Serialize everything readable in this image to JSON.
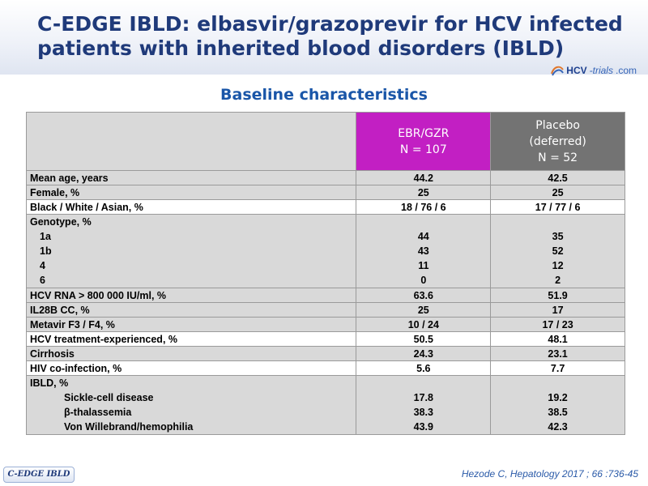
{
  "slide": {
    "title_line1": "C-EDGE IBLD: elbasvir/grazoprevir for HCV infected",
    "title_line2": "patients with inherited blood disorders (IBLD)",
    "subtitle": "Baseline characteristics",
    "logo": {
      "hcv": "HCV",
      "trials": "-trials",
      "dotcom": ".com"
    },
    "footer_badge": "C-EDGE IBLD",
    "citation": "Hezode C, Hepatology 2017 ; 66 :736-45"
  },
  "table": {
    "header": {
      "col_a": {
        "line1": "EBR/GZR",
        "line2": "N = 107"
      },
      "col_b": {
        "line1": "Placebo",
        "line2": "(deferred)",
        "line3": "N = 52"
      }
    },
    "rows": {
      "mean_age": {
        "label": "Mean age, years",
        "a": "44.2",
        "b": "42.5"
      },
      "female": {
        "label": "Female, %",
        "a": "25",
        "b": "25"
      },
      "race": {
        "label": "Black / White / Asian, %",
        "a": "18 / 76 / 6",
        "b": "17 / 77 / 6"
      },
      "genotype": {
        "label": "Genotype, %",
        "items": [
          {
            "label": "1a",
            "a": "44",
            "b": "35"
          },
          {
            "label": "1b",
            "a": "43",
            "b": "52"
          },
          {
            "label": "4",
            "a": "11",
            "b": "12"
          },
          {
            "label": "6",
            "a": "0",
            "b": "2"
          }
        ]
      },
      "hcv_rna": {
        "label": "HCV RNA > 800 000 IU/ml, %",
        "a": "63.6",
        "b": "51.9"
      },
      "il28b": {
        "label": "IL28B CC, %",
        "a": "25",
        "b": "17"
      },
      "metavir": {
        "label": "Metavir F3 / F4, %",
        "a": "10 / 24",
        "b": "17 / 23"
      },
      "treatment_exp": {
        "label": "HCV treatment-experienced, %",
        "a": "50.5",
        "b": "48.1"
      },
      "cirrhosis": {
        "label": "Cirrhosis",
        "a": "24.3",
        "b": "23.1"
      },
      "hiv": {
        "label": "HIV co-infection, %",
        "a": "5.6",
        "b": "7.7"
      },
      "ibld": {
        "label": "IBLD, %",
        "items": [
          {
            "label": "Sickle-cell disease",
            "a": "17.8",
            "b": "19.2"
          },
          {
            "label": "β-thalassemia",
            "a": "38.3",
            "b": "38.5"
          },
          {
            "label": "Von Willebrand/hemophilia",
            "a": "43.9",
            "b": "42.3"
          }
        ]
      }
    }
  },
  "colors": {
    "title": "#1f3a7a",
    "subtitle": "#1a56a8",
    "ebr_header": "#c21fc3",
    "placebo_header": "#737373",
    "row_grey": "#d9d9d9"
  }
}
